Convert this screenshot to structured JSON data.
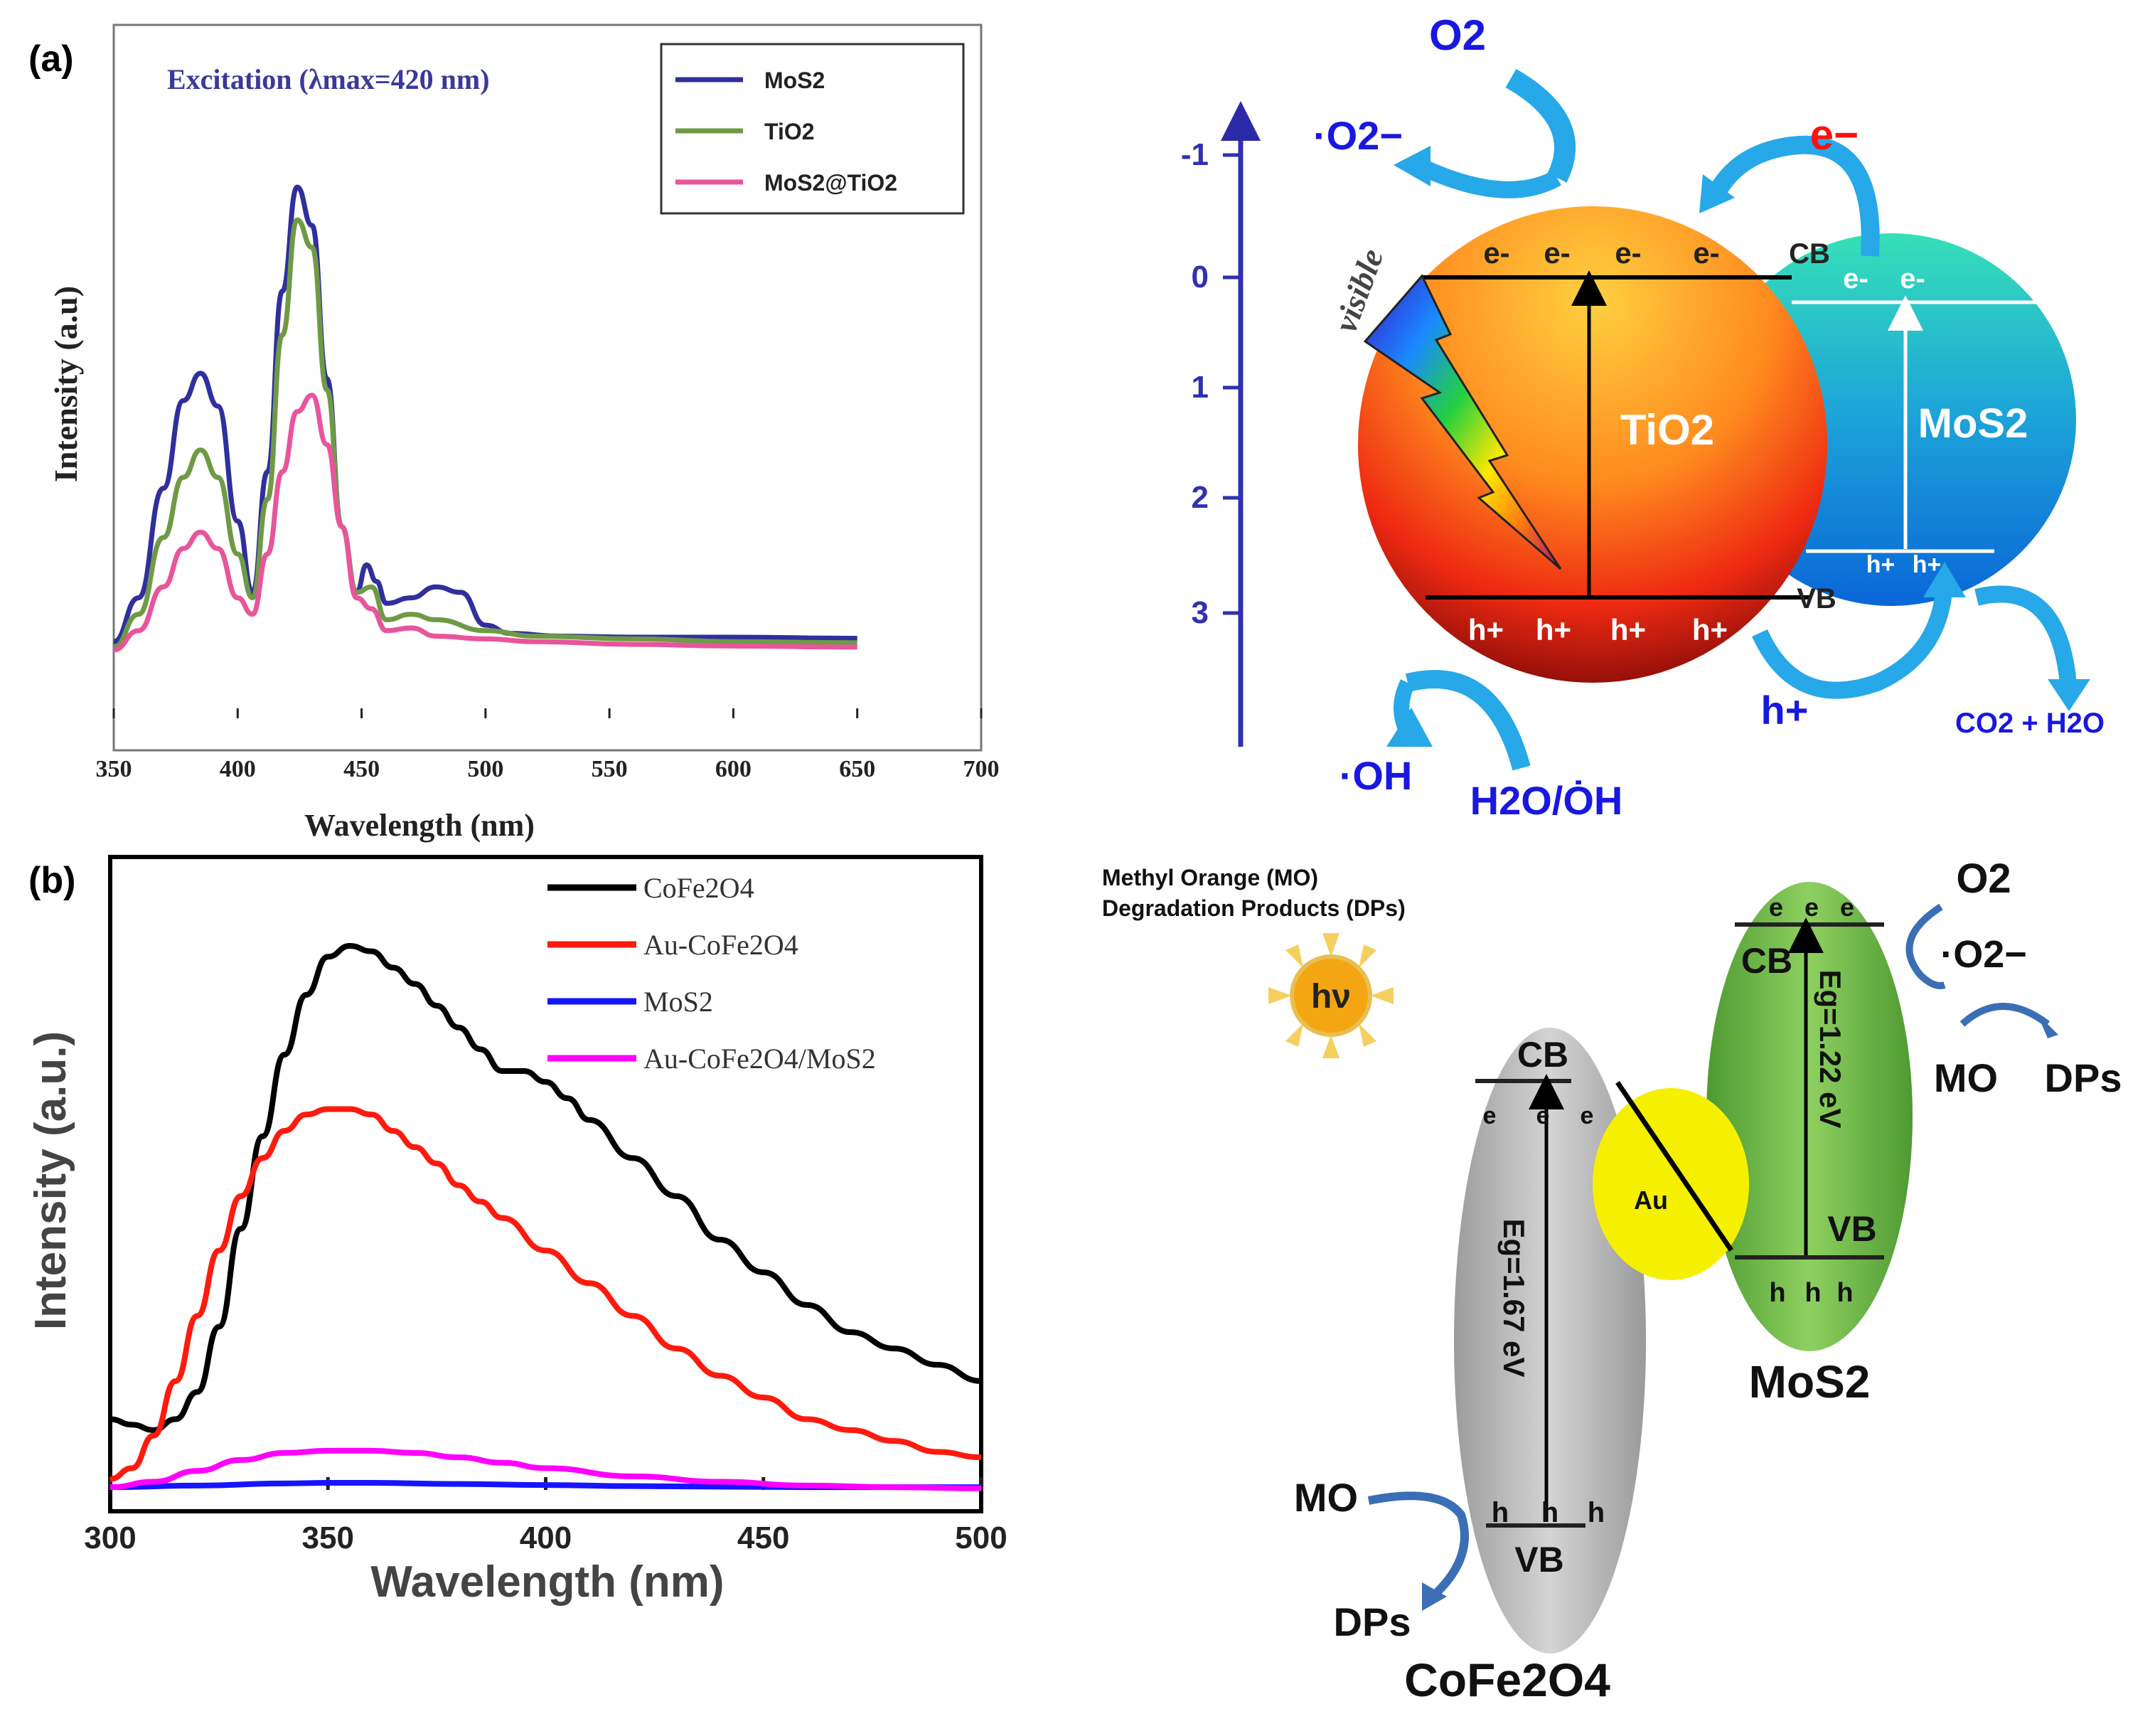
{
  "panel_a": {
    "label": "(a)",
    "annotation": "Excitation (λmax=420 nm)",
    "chart_data": {
      "type": "line",
      "title": "",
      "xlabel": "Wavelength (nm)",
      "ylabel": "Intensity (a.u)",
      "xlim": [
        350,
        700
      ],
      "ylim": [
        0,
        1
      ],
      "xticks": [
        350,
        400,
        450,
        500,
        550,
        600,
        650,
        700
      ],
      "xtick_labels": [
        "350",
        "400",
        "450",
        "500",
        "550",
        "600",
        "650",
        "700"
      ],
      "legend": "top-right",
      "series": [
        {
          "name": "MoS2",
          "color": "#2f2f9e",
          "x": [
            350,
            360,
            370,
            378,
            385,
            392,
            400,
            406,
            412,
            418,
            424,
            430,
            436,
            442,
            448,
            452,
            456,
            460,
            470,
            480,
            490,
            500,
            510,
            530,
            560,
            600,
            650
          ],
          "y": [
            0.14,
            0.22,
            0.42,
            0.58,
            0.63,
            0.57,
            0.36,
            0.23,
            0.45,
            0.78,
            0.97,
            0.9,
            0.62,
            0.35,
            0.23,
            0.28,
            0.25,
            0.21,
            0.22,
            0.24,
            0.23,
            0.17,
            0.155,
            0.15,
            0.148,
            0.148,
            0.146
          ]
        },
        {
          "name": "TiO2",
          "color": "#6f9a45",
          "x": [
            350,
            360,
            370,
            378,
            385,
            392,
            400,
            406,
            412,
            418,
            424,
            430,
            436,
            442,
            448,
            454,
            460,
            470,
            480,
            500,
            520,
            560,
            600,
            650
          ],
          "y": [
            0.13,
            0.19,
            0.33,
            0.44,
            0.49,
            0.44,
            0.3,
            0.22,
            0.4,
            0.7,
            0.91,
            0.86,
            0.6,
            0.35,
            0.23,
            0.24,
            0.18,
            0.19,
            0.18,
            0.16,
            0.15,
            0.145,
            0.14,
            0.138
          ]
        },
        {
          "name": "MoS2@TiO2",
          "color": "#e8559b",
          "x": [
            350,
            360,
            370,
            378,
            385,
            392,
            400,
            406,
            412,
            418,
            424,
            430,
            436,
            442,
            448,
            454,
            460,
            470,
            480,
            500,
            520,
            560,
            600,
            650
          ],
          "y": [
            0.125,
            0.16,
            0.24,
            0.31,
            0.34,
            0.31,
            0.22,
            0.19,
            0.3,
            0.45,
            0.56,
            0.59,
            0.5,
            0.35,
            0.22,
            0.2,
            0.16,
            0.165,
            0.15,
            0.145,
            0.14,
            0.135,
            0.132,
            0.13
          ]
        }
      ]
    }
  },
  "panel_b": {
    "label": "(b)",
    "chart_data": {
      "type": "line",
      "title": "",
      "xlabel": "Wavelength (nm)",
      "ylabel": "Intensity (a.u.)",
      "xlim": [
        300,
        500
      ],
      "ylim": [
        0,
        1
      ],
      "xticks": [
        300,
        350,
        400,
        450,
        500
      ],
      "xtick_labels": [
        "300",
        "350",
        "400",
        "450",
        "500"
      ],
      "legend": "top-right",
      "series": [
        {
          "name": "CoFe2O4",
          "color": "#000000",
          "x": [
            300,
            305,
            310,
            315,
            320,
            325,
            330,
            335,
            340,
            345,
            350,
            355,
            360,
            365,
            370,
            375,
            380,
            385,
            390,
            395,
            400,
            405,
            410,
            420,
            430,
            440,
            450,
            460,
            470,
            480,
            490,
            500
          ],
          "y": [
            0.13,
            0.12,
            0.11,
            0.13,
            0.18,
            0.3,
            0.48,
            0.65,
            0.8,
            0.91,
            0.98,
            1.0,
            0.99,
            0.96,
            0.93,
            0.89,
            0.85,
            0.81,
            0.77,
            0.77,
            0.75,
            0.72,
            0.68,
            0.61,
            0.54,
            0.46,
            0.4,
            0.34,
            0.29,
            0.26,
            0.23,
            0.2
          ]
        },
        {
          "name": "Au-CoFe2O4",
          "color": "#ff1a0e",
          "x": [
            300,
            305,
            310,
            315,
            320,
            325,
            330,
            335,
            340,
            345,
            350,
            355,
            360,
            365,
            370,
            375,
            380,
            385,
            390,
            400,
            410,
            420,
            430,
            440,
            450,
            460,
            470,
            480,
            490,
            500
          ],
          "y": [
            0.02,
            0.04,
            0.1,
            0.2,
            0.32,
            0.44,
            0.54,
            0.61,
            0.66,
            0.69,
            0.7,
            0.7,
            0.69,
            0.66,
            0.63,
            0.6,
            0.56,
            0.53,
            0.5,
            0.44,
            0.38,
            0.32,
            0.26,
            0.21,
            0.17,
            0.13,
            0.11,
            0.09,
            0.07,
            0.06
          ]
        },
        {
          "name": "MoS2",
          "color": "#1515ff",
          "x": [
            300,
            320,
            340,
            350,
            360,
            380,
            400,
            420,
            440,
            460,
            480,
            500
          ],
          "y": [
            0.005,
            0.008,
            0.012,
            0.013,
            0.013,
            0.011,
            0.009,
            0.007,
            0.006,
            0.005,
            0.005,
            0.005
          ]
        },
        {
          "name": "Au-CoFe2O4/MoS2",
          "color": "#ff00ff",
          "x": [
            300,
            310,
            320,
            330,
            340,
            350,
            360,
            370,
            380,
            390,
            400,
            420,
            440,
            460,
            480,
            500
          ],
          "y": [
            0.005,
            0.015,
            0.035,
            0.055,
            0.068,
            0.072,
            0.072,
            0.068,
            0.06,
            0.05,
            0.04,
            0.025,
            0.015,
            0.008,
            0.005,
            0.003
          ]
        }
      ]
    }
  },
  "diagram_top": {
    "o2": "O2",
    "superoxide": "·O2−",
    "electron_red": "e−",
    "visible": "visible",
    "scale_ticks": [
      "-1",
      "0",
      "1",
      "2",
      "3"
    ],
    "tio2": "TiO2",
    "mos2": "MoS2",
    "cb": "CB",
    "vb": "VB",
    "e_minus": "e-",
    "h_plus": "h+",
    "hydroxyl": "·OH",
    "water": "H2O/ȮH",
    "h_plus_big": "h+",
    "co2": "CO2 + H2O"
  },
  "diagram_bottom": {
    "caption1": "Methyl Orange (MO)",
    "caption2": "Degradation Products (DPs)",
    "hv": "hν",
    "cb": "CB",
    "vb": "VB",
    "au": "Au",
    "eg_cofe": "Eg=1.67 eV",
    "eg_mos2": "Eg=1.22 eV",
    "o2": "O2",
    "superoxide": "·O2−",
    "mo": "MO",
    "dps": "DPs",
    "mos2": "MoS2",
    "cofe": "CoFe2O4",
    "e_sym": "e",
    "h_sym": "h"
  }
}
